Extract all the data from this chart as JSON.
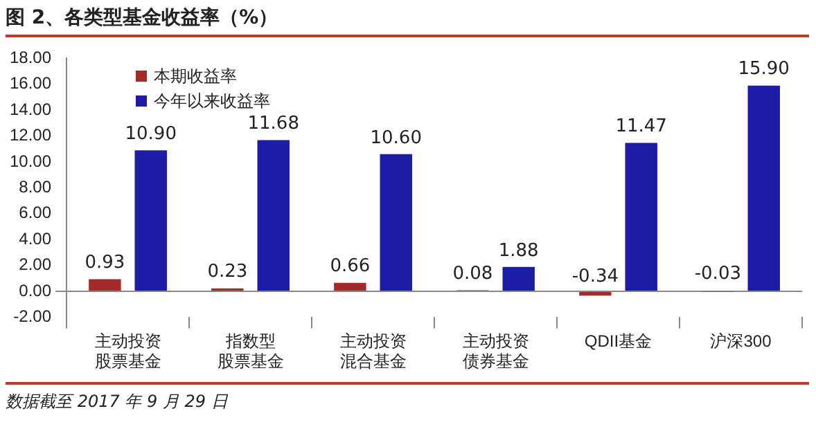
{
  "chart_data": {
    "type": "bar",
    "title": "图 2、各类型基金收益率（%）",
    "categories": [
      "主动投资股票基金",
      "指数型股票基金",
      "主动投资混合基金",
      "主动投资债券基金",
      "QDII基金",
      "沪深300"
    ],
    "series": [
      {
        "name": "本期收益率",
        "color": "#a52a2a",
        "values": [
          0.93,
          0.23,
          0.66,
          0.08,
          -0.34,
          -0.03
        ],
        "value_labels": [
          "0.93",
          "0.23",
          "0.66",
          "0.08",
          "-0.34",
          "-0.03"
        ]
      },
      {
        "name": "今年以来收益率",
        "color": "#1c1ca8",
        "values": [
          10.9,
          11.68,
          10.6,
          1.88,
          11.47,
          15.9
        ],
        "value_labels": [
          "10.90",
          "11.68",
          "10.60",
          "1.88",
          "11.47",
          "15.90"
        ]
      }
    ],
    "ylim": [
      -2,
      18
    ],
    "yticks": [
      {
        "value": -2,
        "label": "-2.00"
      },
      {
        "value": 0,
        "label": "0.00"
      },
      {
        "value": 2,
        "label": "2.00"
      },
      {
        "value": 4,
        "label": "4.00"
      },
      {
        "value": 6,
        "label": "6.00"
      },
      {
        "value": 8,
        "label": "8.00"
      },
      {
        "value": 10,
        "label": "10.00"
      },
      {
        "value": 12,
        "label": "12.00"
      },
      {
        "value": 14,
        "label": "14.00"
      },
      {
        "value": 16,
        "label": "16.00"
      },
      {
        "value": 18,
        "label": "18.00"
      }
    ],
    "legend": "top left",
    "grid": false,
    "annotations": [
      "数据截至 2017 年 9 月 29 日"
    ]
  }
}
